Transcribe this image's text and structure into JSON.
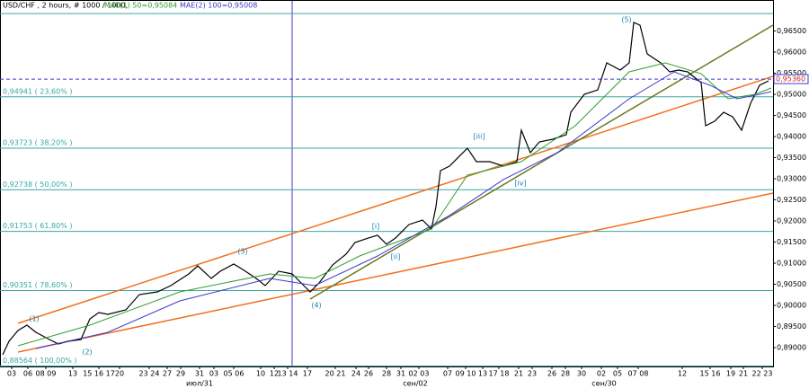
{
  "chart_data": {
    "type": "line",
    "title": "USD/CHF , 2 hours, # 1000 / 1000,",
    "xlim": [
      0,
      860
    ],
    "ylim": [
      0.88553,
      0.97234
    ],
    "yticks": [
      {
        "value": 0.965,
        "label": "0,96500"
      },
      {
        "value": 0.96,
        "label": "0,96000"
      },
      {
        "value": 0.955,
        "label": "0,95500"
      },
      {
        "value": 0.95,
        "label": "0,95000"
      },
      {
        "value": 0.945,
        "label": "0,94500"
      },
      {
        "value": 0.94,
        "label": "0,94000"
      },
      {
        "value": 0.935,
        "label": "0,93500"
      },
      {
        "value": 0.93,
        "label": "0,93000"
      },
      {
        "value": 0.925,
        "label": "0,92500"
      },
      {
        "value": 0.92,
        "label": "0,92000"
      },
      {
        "value": 0.915,
        "label": "0,91500"
      },
      {
        "value": 0.91,
        "label": "0,91000"
      },
      {
        "value": 0.905,
        "label": "0,90500"
      },
      {
        "value": 0.9,
        "label": "0,90000"
      },
      {
        "value": 0.895,
        "label": "0,89500"
      },
      {
        "value": 0.89,
        "label": "0,89000"
      }
    ],
    "xticks": [
      {
        "value": 13,
        "label": "03"
      },
      {
        "value": 31,
        "label": "06"
      },
      {
        "value": 51,
        "label": "08 09"
      },
      {
        "value": 81,
        "label": "13"
      },
      {
        "value": 110,
        "label": "15 16 17"
      },
      {
        "value": 133,
        "label": "20"
      },
      {
        "value": 166,
        "label": "23 24"
      },
      {
        "value": 186,
        "label": "27"
      },
      {
        "value": 201,
        "label": "29"
      },
      {
        "value": 222,
        "label": "31"
      },
      {
        "value": 238,
        "label": "03"
      },
      {
        "value": 260,
        "label": "05 06"
      },
      {
        "value": 290,
        "label": "10"
      },
      {
        "value": 305,
        "label": "12"
      },
      {
        "value": 320,
        "label": "13 14"
      },
      {
        "value": 342,
        "label": "17"
      },
      {
        "value": 373,
        "label": "20 21"
      },
      {
        "value": 396,
        "label": "24"
      },
      {
        "value": 410,
        "label": "26"
      },
      {
        "value": 430,
        "label": "28"
      },
      {
        "value": 446,
        "label": "31"
      },
      {
        "value": 466,
        "label": "02 03"
      },
      {
        "value": 498,
        "label": "07"
      },
      {
        "value": 518,
        "label": "09 10"
      },
      {
        "value": 537,
        "label": "13"
      },
      {
        "value": 555,
        "label": "17 18"
      },
      {
        "value": 577,
        "label": "21"
      },
      {
        "value": 592,
        "label": "23"
      },
      {
        "value": 614,
        "label": "26"
      },
      {
        "value": 629,
        "label": "28"
      },
      {
        "value": 647,
        "label": "30"
      },
      {
        "value": 669,
        "label": "02"
      },
      {
        "value": 687,
        "label": "05"
      },
      {
        "value": 710,
        "label": "07 08"
      },
      {
        "value": 759,
        "label": "12"
      },
      {
        "value": 790,
        "label": "15 16"
      },
      {
        "value": 813,
        "label": "19"
      },
      {
        "value": 827,
        "label": "21"
      },
      {
        "value": 848,
        "label": "22 23"
      }
    ],
    "x_groups": [
      {
        "value": 222,
        "label": "июл/31"
      },
      {
        "value": 462,
        "label": "сен/02"
      },
      {
        "value": 672,
        "label": "сен/30"
      }
    ],
    "series": [
      {
        "color": "#000000",
        "x": [
          3,
          10,
          20,
          30,
          40,
          55,
          65,
          75,
          90,
          100,
          110,
          120,
          140,
          155,
          175,
          190,
          210,
          220,
          235,
          245,
          260,
          270,
          285,
          295,
          310,
          325,
          335,
          345,
          355,
          370,
          385,
          395,
          410,
          420,
          430,
          440,
          455,
          470,
          480,
          485,
          490,
          500,
          510,
          520,
          530,
          545,
          560,
          575,
          580,
          590,
          600,
          615,
          630,
          635,
          650,
          665,
          675,
          690,
          700,
          705,
          712,
          720,
          735,
          745,
          755,
          765,
          780,
          785,
          795,
          805,
          815,
          825,
          835,
          845,
          855
        ],
        "values": [
          0.8883,
          0.89149,
          0.89404,
          0.89532,
          0.89362,
          0.89191,
          0.89085,
          0.89149,
          0.89191,
          0.89681,
          0.8983,
          0.89787,
          0.89894,
          0.90255,
          0.90319,
          0.90468,
          0.90745,
          0.90936,
          0.90638,
          0.90809,
          0.90979,
          0.90851,
          0.90638,
          0.90468,
          0.90809,
          0.90745,
          0.90532,
          0.90319,
          0.90532,
          0.90957,
          0.91213,
          0.91489,
          0.91596,
          0.9166,
          0.91447,
          0.91596,
          0.91915,
          0.92021,
          0.91809,
          0.9234,
          0.93191,
          0.93298,
          0.93511,
          0.93723,
          0.93404,
          0.93404,
          0.93298,
          0.93404,
          0.94149,
          0.93617,
          0.93872,
          0.93936,
          0.94043,
          0.94574,
          0.95,
          0.95106,
          0.95745,
          0.95574,
          0.95745,
          0.96702,
          0.96638,
          0.95957,
          0.95745,
          0.95532,
          0.95574,
          0.95532,
          0.95277,
          0.94255,
          0.94362,
          0.94574,
          0.94468,
          0.94149,
          0.94787,
          0.95213,
          0.95319
        ]
      },
      {
        "name": "MAE(1) 50=0,95084",
        "color": "#2e9e2e",
        "x": [
          20,
          100,
          200,
          300,
          350,
          400,
          480,
          520,
          580,
          640,
          700,
          740,
          780,
          810,
          840,
          858
        ],
        "values": [
          0.89043,
          0.89532,
          0.90319,
          0.90745,
          0.90638,
          0.9117,
          0.91809,
          0.93085,
          0.93404,
          0.94255,
          0.95532,
          0.95745,
          0.95489,
          0.94894,
          0.95,
          0.95149
        ]
      },
      {
        "name": "MAE(2) 100=0,95008",
        "color": "#3a3ad0",
        "x": [
          40,
          120,
          200,
          300,
          350,
          420,
          500,
          560,
          620,
          700,
          750,
          790,
          820,
          845,
          858
        ],
        "values": [
          0.88979,
          0.89362,
          0.90106,
          0.90638,
          0.90468,
          0.9117,
          0.92128,
          0.92979,
          0.93617,
          0.94894,
          0.95532,
          0.95213,
          0.94894,
          0.95,
          0.95064
        ]
      }
    ],
    "levels": [
      0.96911,
      0.94941,
      0.93723,
      0.92738,
      0.91753,
      0.90351,
      0.88564
    ],
    "level_labels": [
      null,
      "0,94941 ( 23,60% )",
      "0,93723 ( 38,20% )",
      "0,92738 ( 50,00% )",
      "0,91753 ( 61,80% )",
      "0,90351 ( 78,60% )",
      "0,88564 ( 100,00% )"
    ],
    "level_color": "#3aa6a6",
    "last_price": {
      "value": 0.9536,
      "label": "0,95360"
    },
    "trend_lines": [
      {
        "color": "#f07020",
        "x": [
          20,
          860
        ],
        "values": [
          0.89574,
          0.95426
        ]
      },
      {
        "color": "#f07020",
        "x": [
          20,
          860
        ],
        "values": [
          0.88894,
          0.9266
        ]
      },
      {
        "color": "#6b7a1e",
        "x": [
          345,
          860
        ],
        "values": [
          0.90149,
          0.96638
        ]
      }
    ],
    "annotations": [
      {
        "text": "(1)",
        "x": 38,
        "y": 0.89681
      },
      {
        "text": "(2)",
        "x": 97,
        "y": 0.88894
      },
      {
        "text": "(3)",
        "x": 270,
        "y": 0.91277
      },
      {
        "text": "(4)",
        "x": 352,
        "y": 0.9
      },
      {
        "text": "(5)",
        "x": 697,
        "y": 0.96766
      },
      {
        "text": "[i]",
        "x": 418,
        "y": 0.91872
      },
      {
        "text": "[ii]",
        "x": 440,
        "y": 0.91149
      },
      {
        "text": "[iii]",
        "x": 533,
        "y": 0.94
      },
      {
        "text": "[iv]",
        "x": 579,
        "y": 0.92894
      }
    ]
  }
}
